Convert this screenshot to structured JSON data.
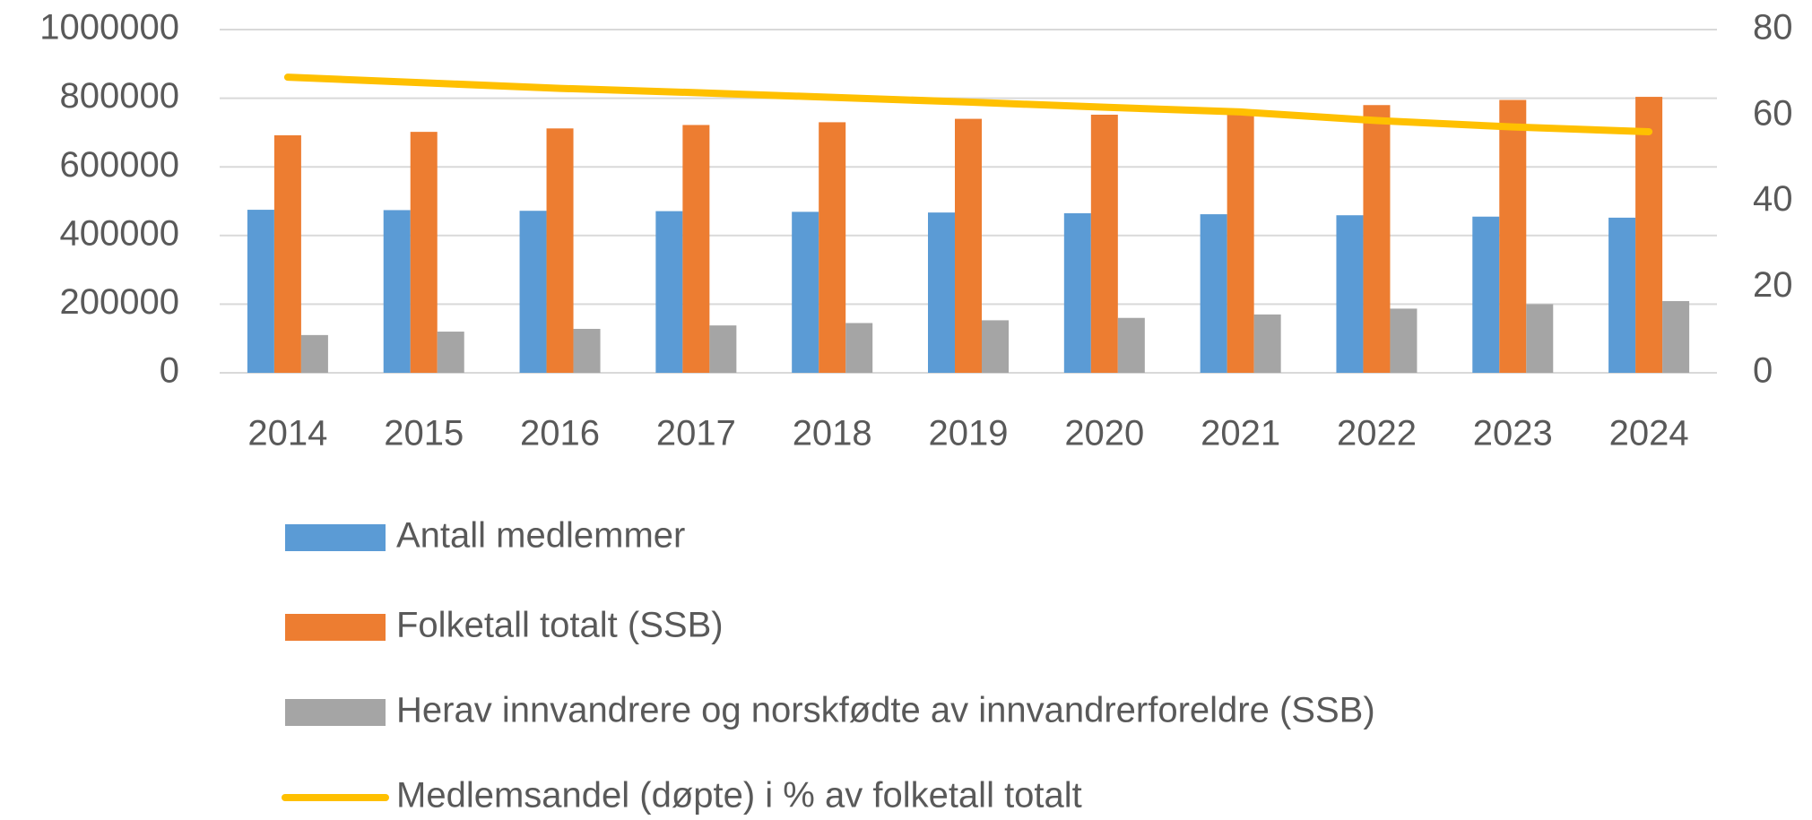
{
  "chart_data": {
    "type": "bar",
    "categories": [
      "2014",
      "2015",
      "2016",
      "2017",
      "2018",
      "2019",
      "2020",
      "2021",
      "2022",
      "2023",
      "2024"
    ],
    "series": [
      {
        "name": "Antall medlemmer",
        "color": "#5b9bd5",
        "values": [
          475000,
          474000,
          472000,
          471000,
          469000,
          467000,
          465000,
          462000,
          459000,
          455000,
          452000
        ]
      },
      {
        "name": "Folketall totalt (SSB)",
        "color": "#ed7d31",
        "values": [
          692000,
          702000,
          712000,
          722000,
          730000,
          740000,
          752000,
          760000,
          780000,
          795000,
          804000
        ]
      },
      {
        "name": "Herav innvandrere og norskfødte av innvandrerforeldre (SSB)",
        "color": "#a5a5a5",
        "values": [
          110000,
          120000,
          128000,
          138000,
          145000,
          153000,
          160000,
          170000,
          187000,
          200000,
          209000
        ]
      },
      {
        "name": "Medlemsandel (døpte) i % av folketall totalt",
        "color": "#ffc000",
        "type": "line",
        "axis": "y2",
        "values": [
          68.9,
          67.6,
          66.3,
          65.3,
          64.2,
          63.1,
          61.9,
          60.8,
          58.8,
          57.3,
          56.2
        ]
      }
    ],
    "ylim": [
      0,
      1000000
    ],
    "yticks": [
      0,
      200000,
      400000,
      600000,
      800000,
      1000000
    ],
    "y2lim": [
      0,
      80
    ],
    "y2ticks": [
      0,
      20,
      40,
      60,
      80
    ],
    "grid": true,
    "legend": "bottom"
  }
}
